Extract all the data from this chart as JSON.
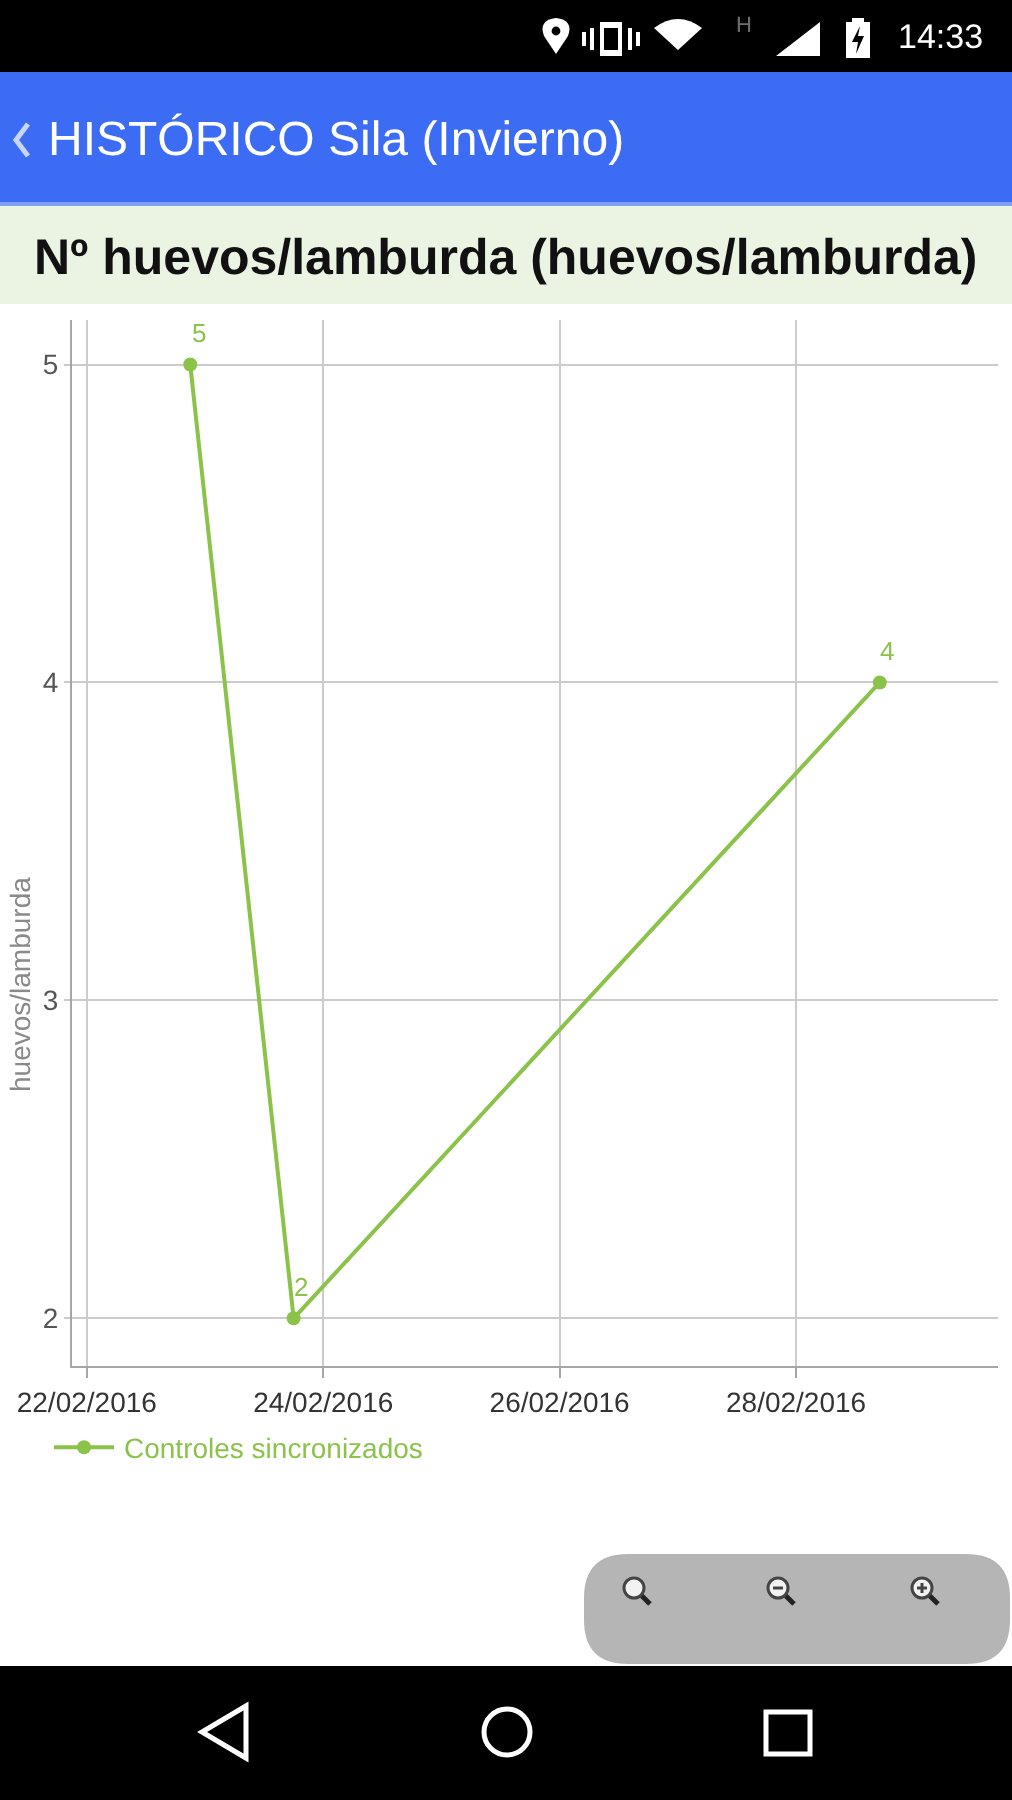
{
  "chart_data": {
    "type": "line",
    "title": "HISTÓRICO Sila (Invierno)",
    "subtitle": "Nº huevos/lamburda (huevos/lamburda)",
    "ylabel": "huevos/lamburda",
    "annotations": [
      "H",
      "14:33"
    ],
    "x": [
      "2016-02-22T21:00",
      "2016-02-23T18:00",
      "2016-02-28T17:00"
    ],
    "series": [
      {
        "name": "Controles sincronizados",
        "color": "#8bc34a",
        "values": [
          5,
          2,
          4
        ]
      }
    ],
    "xlim": [
      "2016-02-21T21:00",
      "2016-02-29T17:00"
    ],
    "xticks": [
      {
        "value": "2016-02-22",
        "label": "22/02/2016"
      },
      {
        "value": "2016-02-24",
        "label": "24/02/2016"
      },
      {
        "value": "2016-02-26",
        "label": "26/02/2016"
      },
      {
        "value": "2016-02-28",
        "label": "28/02/2016"
      }
    ],
    "ylim": [
      1.85,
      5.14
    ],
    "yticks": [
      2,
      3,
      4,
      5
    ],
    "grid": true,
    "legend": "bottom left",
    "marker": "circle",
    "line_style": "solid",
    "data_labels": true
  }
}
